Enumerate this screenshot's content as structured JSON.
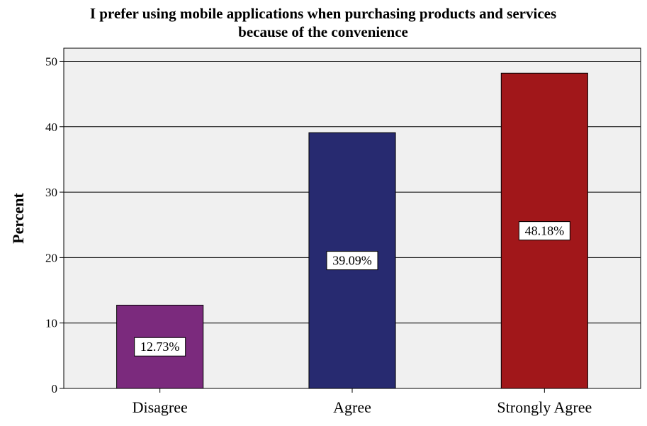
{
  "chart_data": {
    "type": "bar",
    "title_lines": [
      "I prefer using mobile applications when purchasing products and services",
      "because of the convenience"
    ],
    "ylabel": "Percent",
    "xlabel": "",
    "categories": [
      "Disagree",
      "Agree",
      "Strongly Agree"
    ],
    "values": [
      12.73,
      39.09,
      48.18
    ],
    "data_labels": [
      "12.73%",
      "39.09%",
      "48.18%"
    ],
    "colors": [
      "#7b2a7d",
      "#272a70",
      "#a1171a"
    ],
    "ylim": [
      0,
      52
    ],
    "yticks": [
      0,
      10,
      20,
      30,
      40,
      50
    ],
    "grid": true,
    "plot_background": "#f0f0f0"
  }
}
